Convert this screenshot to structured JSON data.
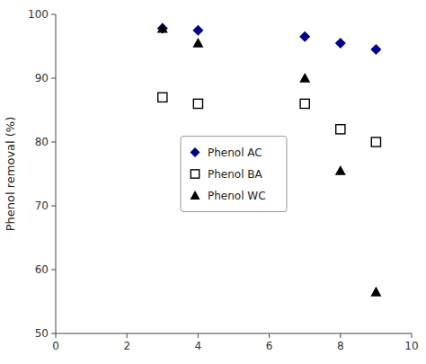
{
  "chart_data": {
    "type": "scatter",
    "ylabel": "Phenol removal (%)",
    "xlim": [
      0,
      10
    ],
    "ylim": [
      50,
      100
    ],
    "xticks": [
      0,
      2,
      4,
      6,
      8,
      10
    ],
    "yticks": [
      50,
      60,
      70,
      80,
      90,
      100
    ],
    "grid": false,
    "legend": "center",
    "series": [
      {
        "name": "Phenol AC",
        "color": "#00008B",
        "marker": "diamond",
        "x": [
          3,
          4,
          7,
          8,
          9
        ],
        "values": [
          97.8,
          97.5,
          96.5,
          95.5,
          94.5
        ]
      },
      {
        "name": "Phenol BA",
        "color": "#000000",
        "marker": "square-open",
        "x": [
          3,
          4,
          7,
          8,
          9
        ],
        "values": [
          87.0,
          86.0,
          86.0,
          82.0,
          80.0
        ]
      },
      {
        "name": "Phenol WC",
        "color": "#000000",
        "marker": "triangle",
        "x": [
          3,
          4,
          7,
          8,
          9
        ],
        "values": [
          97.8,
          95.5,
          90.0,
          75.5,
          56.5
        ]
      }
    ]
  }
}
